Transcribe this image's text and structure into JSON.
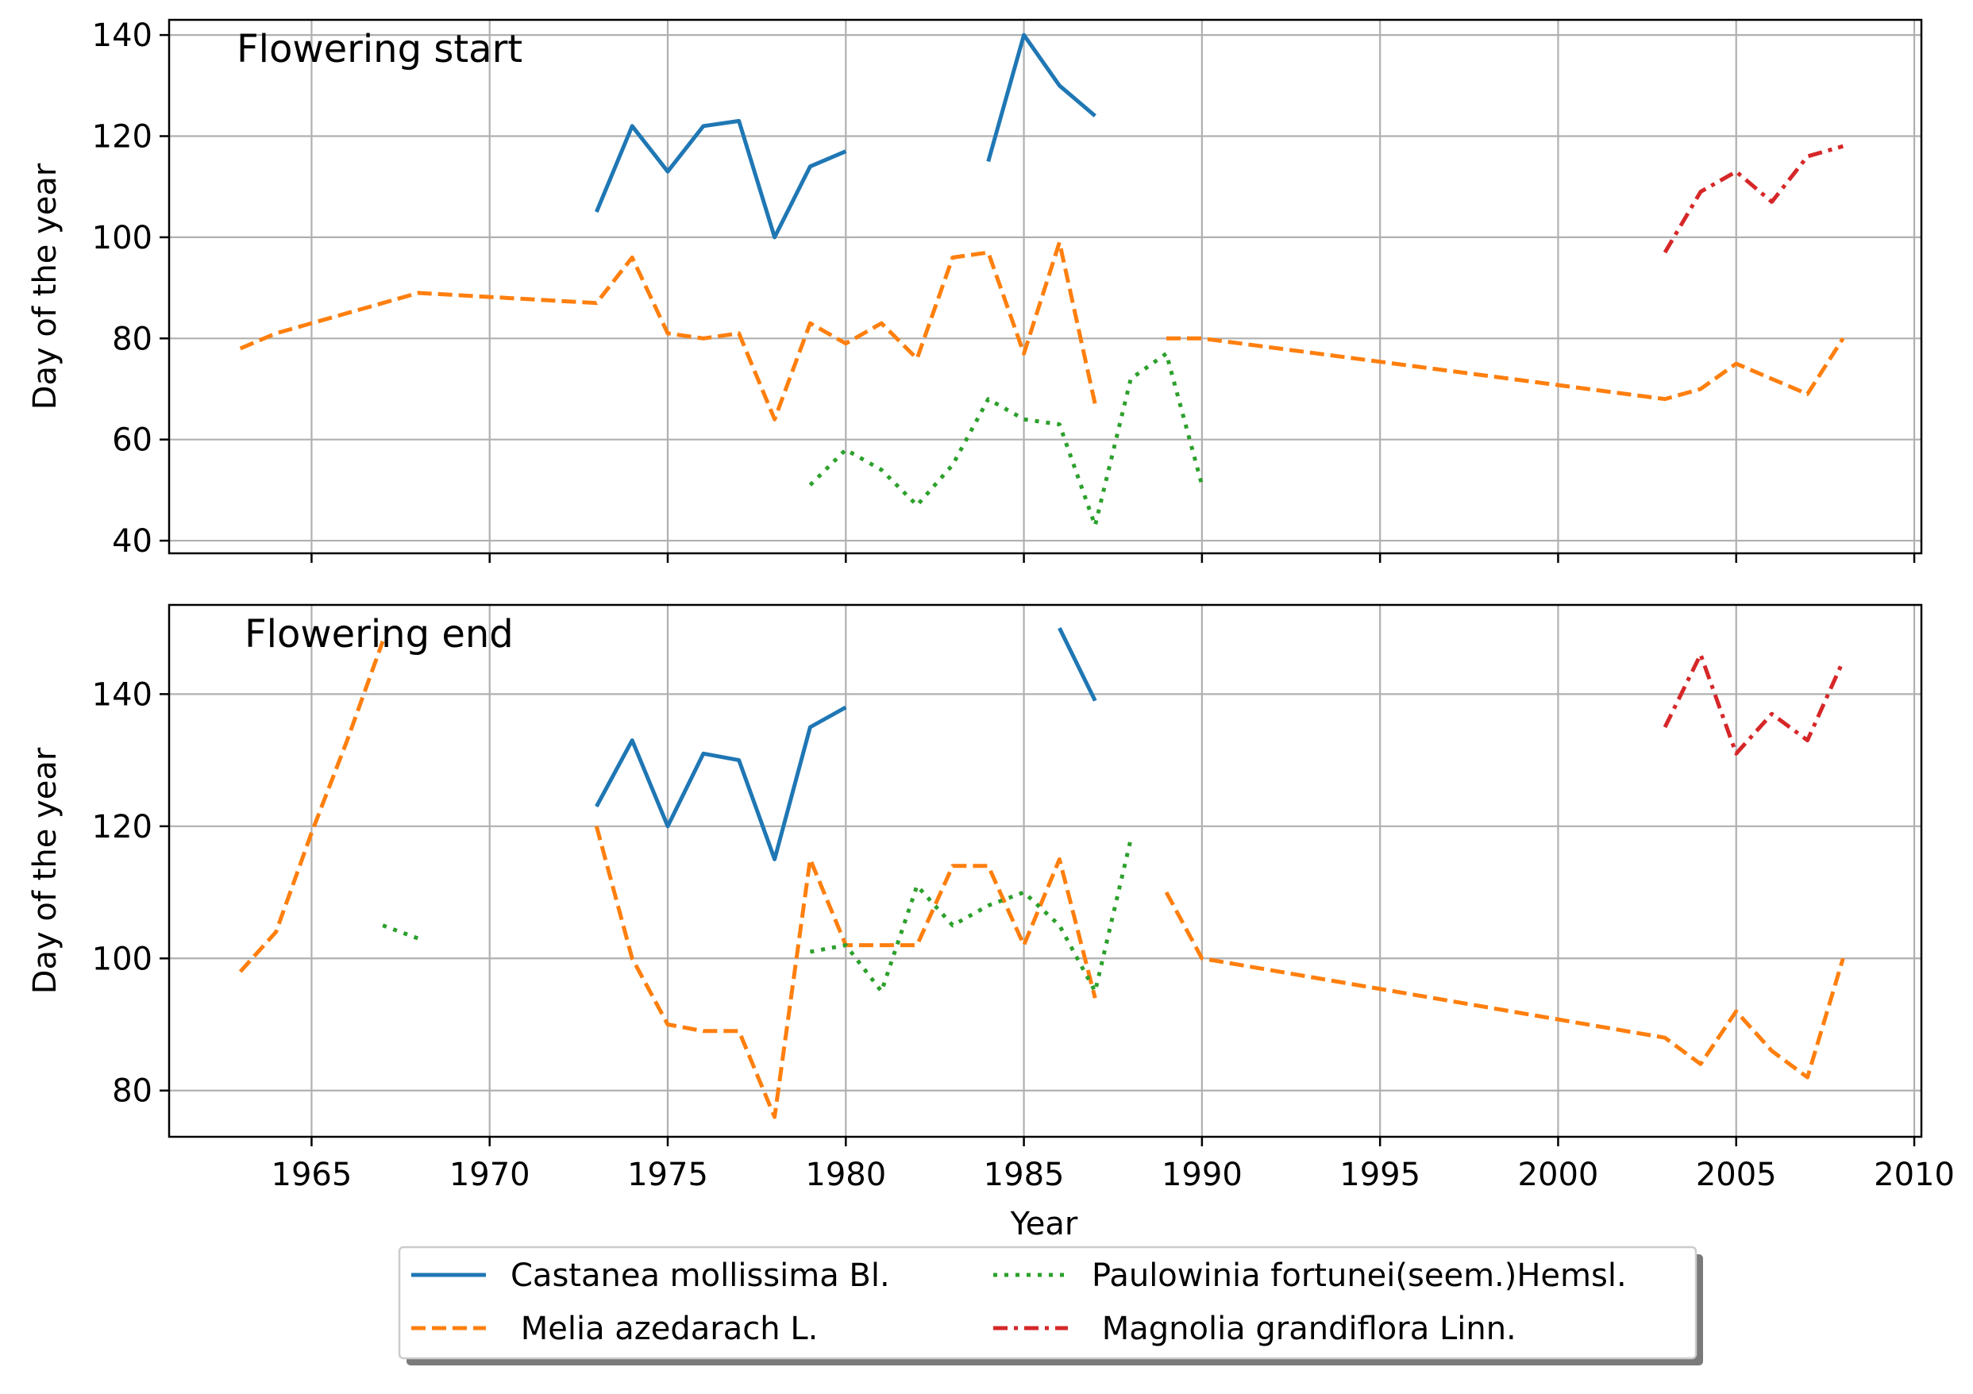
{
  "colors": {
    "castanea": "#1f77b4",
    "melia": "#ff7f0e",
    "paulownia": "#2ca02c",
    "magnolia": "#d62728",
    "grid": "#b0b0b0",
    "axis": "#000000"
  },
  "chart_data": [
    {
      "type": "line",
      "title": "Flowering start",
      "xlabel": "",
      "ylabel": "Day of the year",
      "xlim": [
        1961,
        2010.2
      ],
      "ylim": [
        37.5,
        143
      ],
      "xticks": [
        1965,
        1970,
        1975,
        1980,
        1985,
        1990,
        1995,
        2000,
        2005,
        2010
      ],
      "yticks": [
        40,
        60,
        80,
        100,
        120,
        140
      ],
      "grid": true,
      "series": [
        {
          "name": "Castanea mollissima Bl.",
          "key": "castanea",
          "style": "solid",
          "segments": [
            {
              "x": [
                1973,
                1974,
                1975,
                1976,
                1977,
                1978,
                1979,
                1980
              ],
              "y": [
                105,
                122,
                113,
                122,
                123,
                100,
                114,
                117
              ]
            },
            {
              "x": [
                1984,
                1985,
                1986,
                1987
              ],
              "y": [
                115,
                140,
                130,
                124
              ]
            }
          ]
        },
        {
          "name": "Melia azedarach L.",
          "key": "melia",
          "style": "dashed",
          "segments": [
            {
              "x": [
                1963,
                1964,
                1968,
                1973,
                1974,
                1975,
                1976,
                1977,
                1978,
                1979,
                1980,
                1981,
                1982,
                1983,
                1984,
                1985,
                1986,
                1987
              ],
              "y": [
                78,
                81,
                89,
                87,
                96,
                81,
                80,
                81,
                64,
                83,
                79,
                83,
                76,
                96,
                97,
                77,
                99,
                67
              ]
            },
            {
              "x": [
                1989,
                1990,
                2003,
                2004,
                2005,
                2007,
                2008
              ],
              "y": [
                80,
                80,
                68,
                70,
                75,
                69,
                80
              ]
            }
          ]
        },
        {
          "name": "Paulowinia fortunei(seem.)Hemsl.",
          "key": "paulownia",
          "style": "dotted",
          "segments": [
            {
              "x": [
                1979,
                1980,
                1981,
                1982,
                1983,
                1984,
                1985,
                1986,
                1987,
                1988,
                1989,
                1990
              ],
              "y": [
                51,
                58,
                54,
                47,
                55,
                68,
                64,
                63,
                43,
                72,
                77,
                51
              ]
            }
          ]
        },
        {
          "name": "Magnolia grandiflora Linn.",
          "key": "magnolia",
          "style": "dashdot",
          "segments": [
            {
              "x": [
                2003,
                2004,
                2005,
                2006,
                2007,
                2008
              ],
              "y": [
                97,
                109,
                113,
                107,
                116,
                118
              ]
            }
          ]
        }
      ]
    },
    {
      "type": "line",
      "title": "Flowering end",
      "xlabel": "Year",
      "ylabel": "Day of the year",
      "xlim": [
        1961,
        2010.2
      ],
      "ylim": [
        73,
        153.5
      ],
      "xticks": [
        1965,
        1970,
        1975,
        1980,
        1985,
        1990,
        1995,
        2000,
        2005,
        2010
      ],
      "yticks": [
        80,
        100,
        120,
        140
      ],
      "grid": true,
      "series": [
        {
          "name": "Castanea mollissima Bl.",
          "key": "castanea",
          "style": "solid",
          "segments": [
            {
              "x": [
                1973,
                1974,
                1975,
                1976,
                1977,
                1978,
                1979,
                1980
              ],
              "y": [
                123,
                133,
                120,
                131,
                130,
                115,
                135,
                138
              ]
            },
            {
              "x": [
                1986,
                1987
              ],
              "y": [
                150,
                139
              ]
            }
          ]
        },
        {
          "name": "Melia azedarach L.",
          "key": "melia",
          "style": "dashed",
          "segments": [
            {
              "x": [
                1963,
                1964,
                1965,
                1966,
                1967
              ],
              "y": [
                98,
                104,
                119,
                133,
                148
              ]
            },
            {
              "x": [
                1973,
                1974,
                1975,
                1976,
                1977,
                1978,
                1979,
                1980,
                1981,
                1982,
                1983,
                1984,
                1985,
                1986,
                1987
              ],
              "y": [
                120,
                100,
                90,
                89,
                89,
                76,
                115,
                102,
                102,
                102,
                114,
                114,
                102,
                115,
                94
              ]
            },
            {
              "x": [
                1989,
                1990,
                2003,
                2004,
                2005,
                2006,
                2007,
                2008
              ],
              "y": [
                110,
                100,
                88,
                84,
                92,
                86,
                82,
                100
              ]
            }
          ]
        },
        {
          "name": "Paulowinia fortunei(seem.)Hemsl.",
          "key": "paulownia",
          "style": "dotted",
          "segments": [
            {
              "x": [
                1967,
                1968
              ],
              "y": [
                105,
                103
              ]
            },
            {
              "x": [
                1979,
                1980,
                1981,
                1982,
                1983,
                1984,
                1985,
                1986,
                1987,
                1988
              ],
              "y": [
                101,
                102,
                95,
                111,
                105,
                108,
                110,
                105,
                95,
                118
              ]
            }
          ]
        },
        {
          "name": "Magnolia grandiflora Linn.",
          "key": "magnolia",
          "style": "dashdot",
          "segments": [
            {
              "x": [
                2003,
                2004,
                2005,
                2006,
                2007,
                2008
              ],
              "y": [
                135,
                146,
                131,
                137,
                133,
                145
              ]
            }
          ]
        }
      ]
    }
  ],
  "legend": {
    "placement": "bottom-center",
    "entries": [
      {
        "label": "Castanea mollissima Bl.",
        "key": "castanea",
        "style": "solid"
      },
      {
        "label": "Paulowinia fortunei(seem.)Hemsl.",
        "key": "paulownia",
        "style": "dotted"
      },
      {
        "label": " Melia azedarach L.",
        "key": "melia",
        "style": "dashed"
      },
      {
        "label": " Magnolia grandiflora Linn.",
        "key": "magnolia",
        "style": "dashdot"
      }
    ]
  }
}
